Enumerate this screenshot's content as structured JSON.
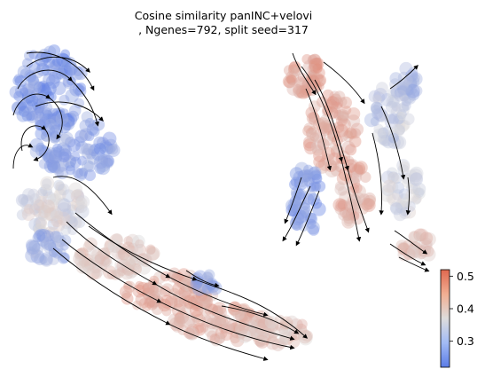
{
  "chart_data": {
    "type": "scatter",
    "title_lines": [
      "Cosine similarity panINC+velovi",
      ", Ngenes=792, split seed=317"
    ],
    "colorbar": {
      "colormap": "coolwarm",
      "min": 0.22,
      "max": 0.52,
      "ticks": [
        {
          "value": 0.3,
          "label": "0.3"
        },
        {
          "value": 0.4,
          "label": "0.4"
        },
        {
          "value": 0.5,
          "label": "0.5"
        }
      ],
      "colors": {
        "low": "#5b7ce6",
        "mid": "#dddcdc",
        "high": "#e0684f"
      }
    },
    "axes_visible": false,
    "grid": false
  }
}
